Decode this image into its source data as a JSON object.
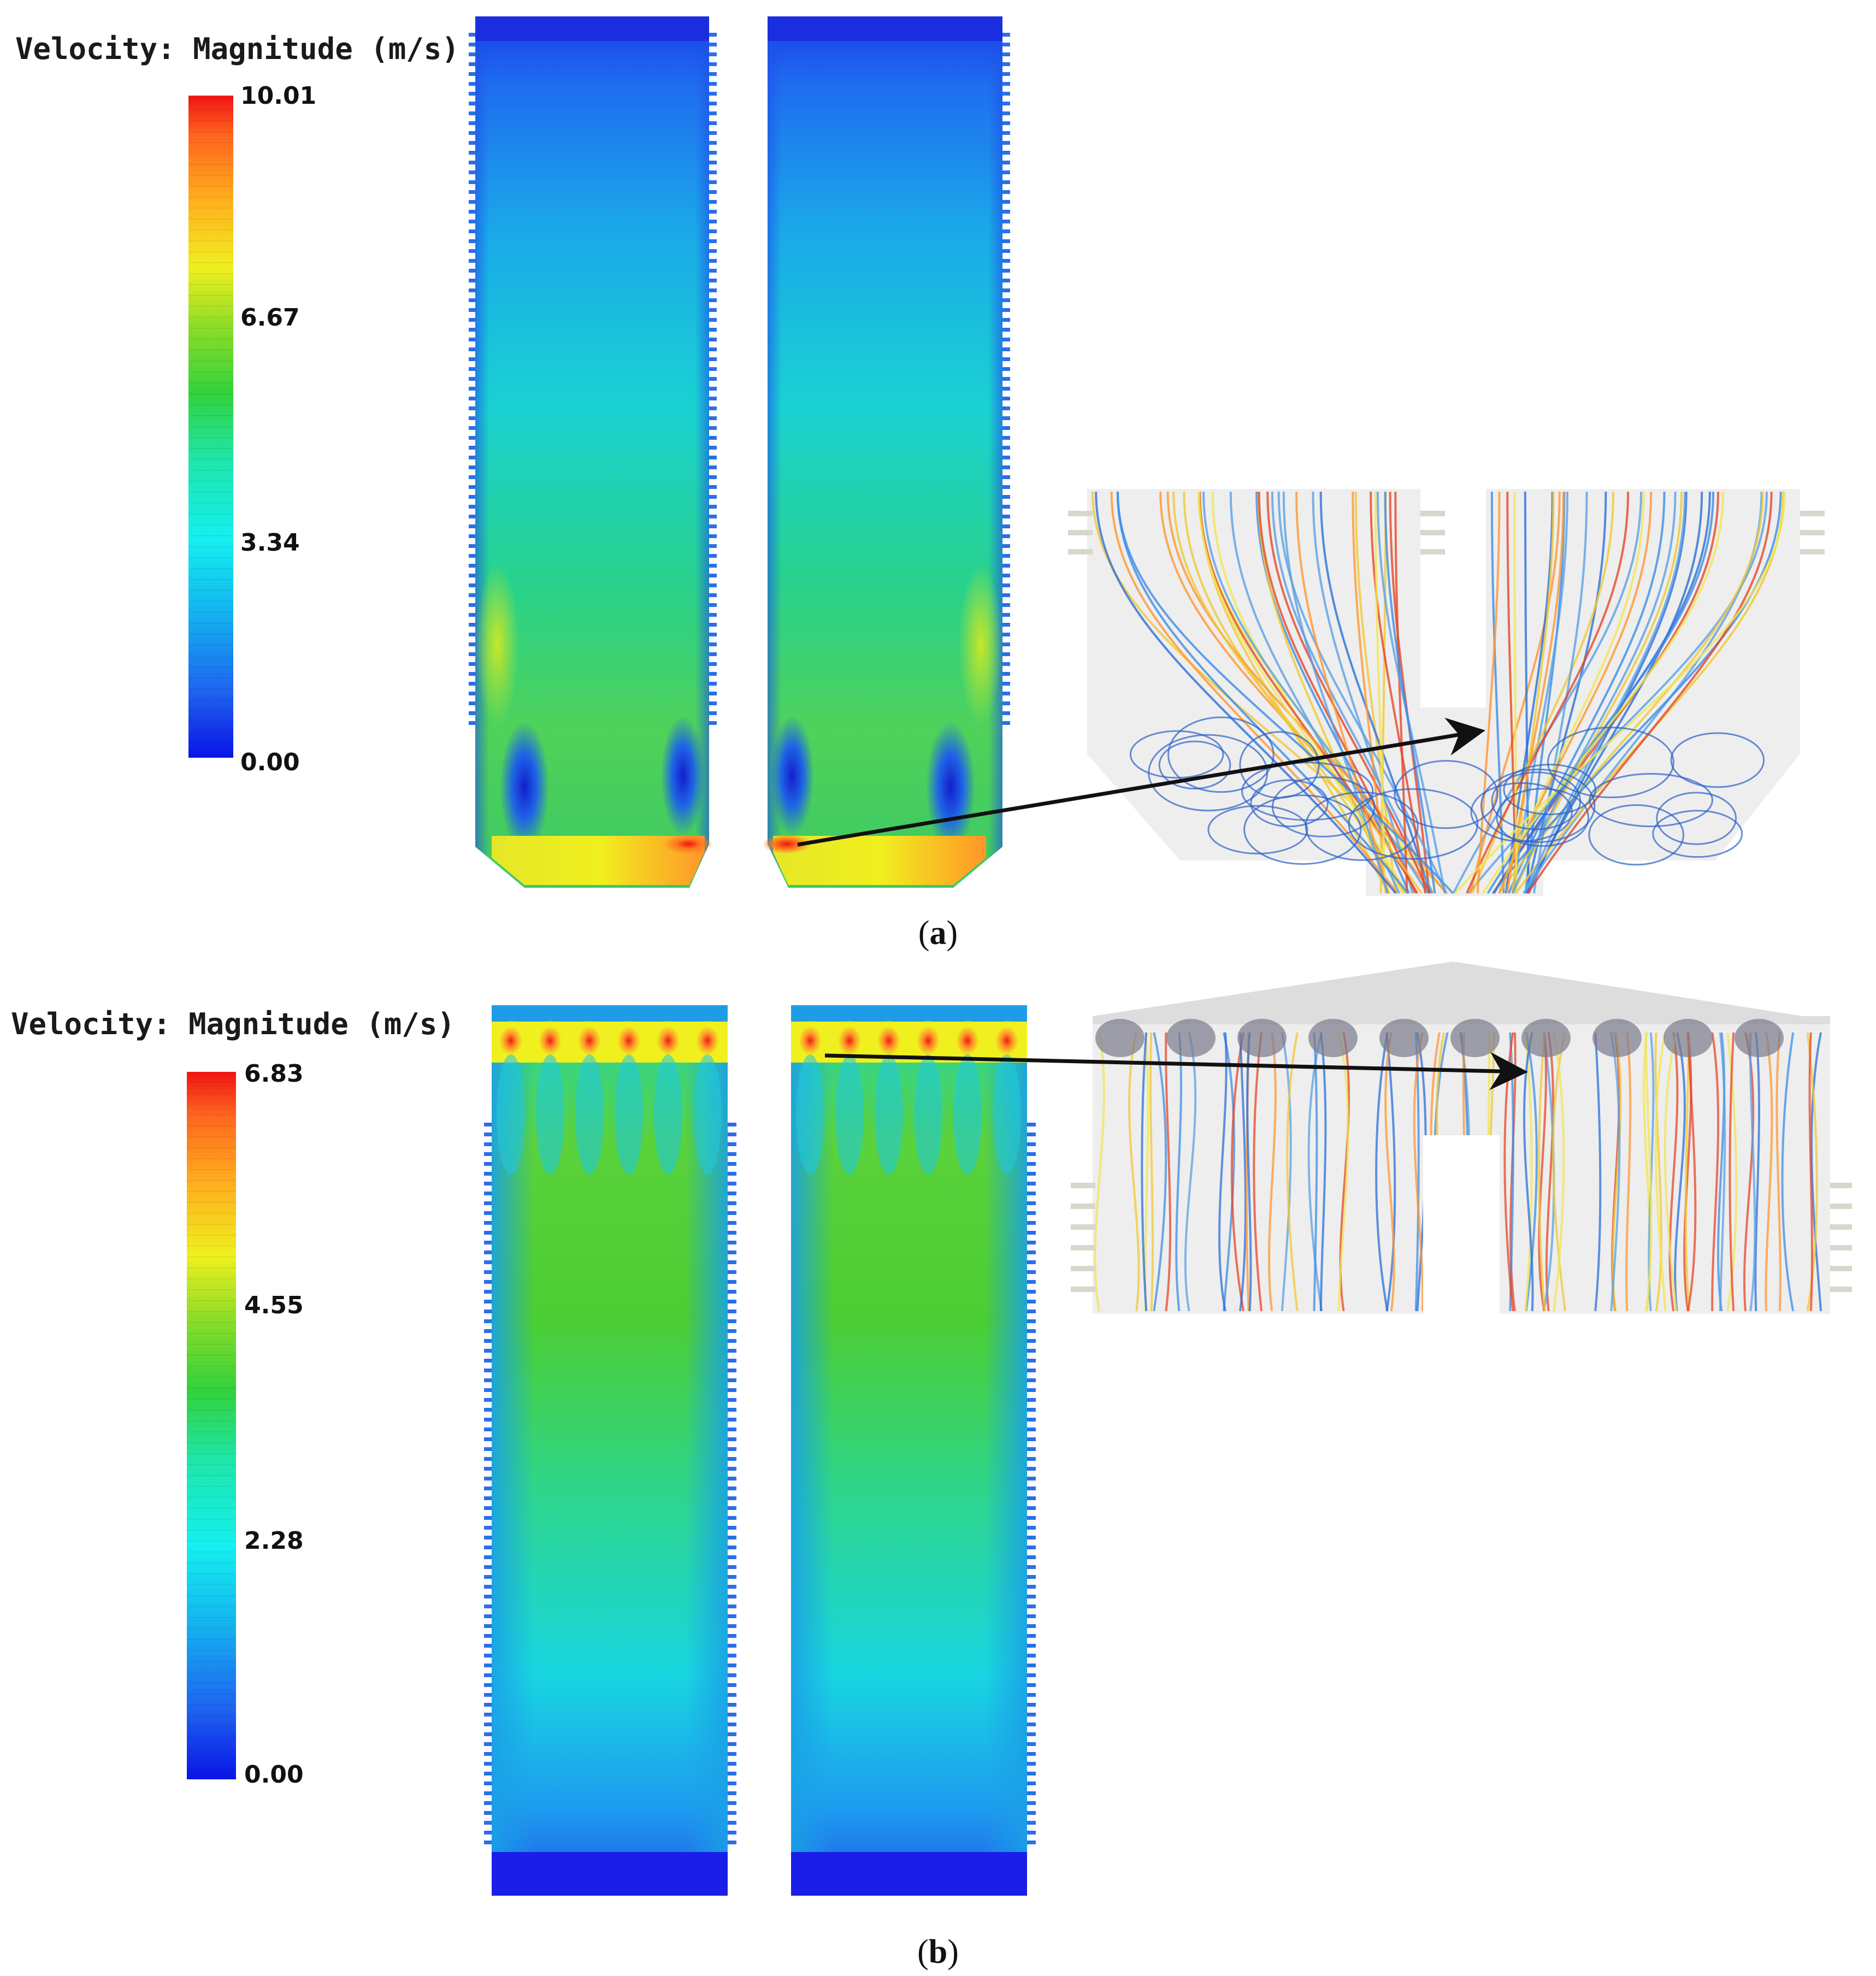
{
  "panels": [
    {
      "id": "a",
      "caption_letter": "a",
      "legend": {
        "title": "Velocity: Magnitude (m/s)",
        "max": 10.01,
        "ticks": [
          "10.01",
          "6.67",
          "3.34",
          "0.00"
        ]
      }
    },
    {
      "id": "b",
      "caption_letter": "b",
      "legend": {
        "title": "Velocity: Magnitude (m/s)",
        "max": 6.83,
        "ticks": [
          "6.83",
          "4.55",
          "2.28",
          "0.00"
        ]
      }
    }
  ],
  "colormap": [
    "#0a1ee6",
    "#1e6ef0",
    "#12c8f0",
    "#1ee6c8",
    "#32d26e",
    "#78dc32",
    "#d2e628",
    "#fff01e",
    "#ffb41e",
    "#ff6e1e",
    "#f01e1e"
  ]
}
